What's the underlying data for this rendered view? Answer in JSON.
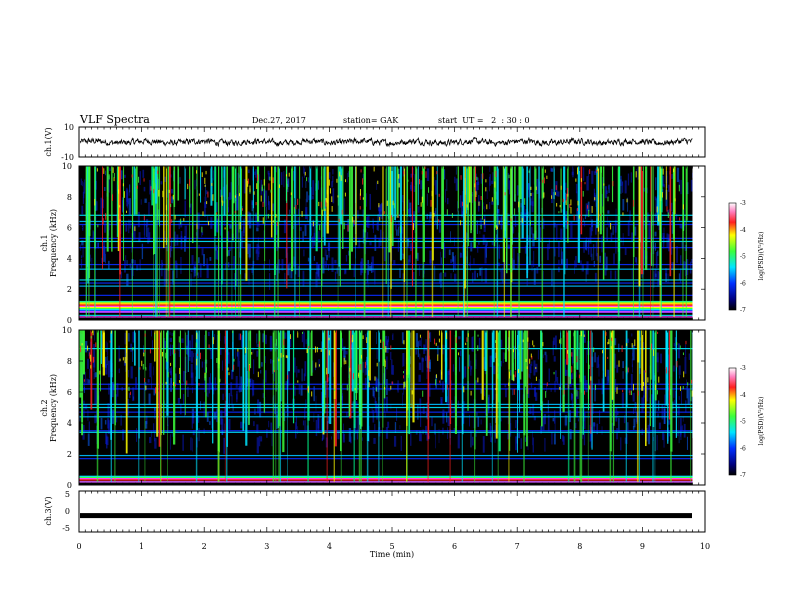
{
  "header": {
    "title": "VLF Spectra",
    "date": "Dec.27, 2017",
    "station": "station= GAK",
    "start_ut": "start  UT =   2  : 30 : 0"
  },
  "colors": {
    "background": "#000000",
    "blue": "#0a2cff",
    "cyan": "#00e5ff",
    "green": "#3cff3c",
    "yellow": "#ffff00",
    "red": "#ff2020",
    "magenta": "#ff40ff"
  },
  "chart_data": [
    {
      "type": "line",
      "id": "ch1-waveform",
      "ylabel": "ch.1(V)",
      "ylim": [
        -10,
        10
      ],
      "yticks": [
        "10",
        "-10"
      ],
      "xlim": [
        0,
        10
      ],
      "description_level": "noisy trace around 0 V, amplitude approx ±2 V",
      "x_extent_min": [
        0.02,
        9.8
      ]
    },
    {
      "type": "heatmap",
      "id": "ch1-spectrogram",
      "ylabel": "ch.1\nFrequency (kHz)",
      "ylim": [
        0,
        10
      ],
      "yticks": [
        "0",
        "2",
        "4",
        "6",
        "8",
        "10"
      ],
      "xlim": [
        0,
        10
      ],
      "colorbar": {
        "label": "log(PSD)(V²/Hz)",
        "range": [
          -7,
          -3
        ],
        "ticks": [
          "-3",
          "-4",
          "-5",
          "-6",
          "-7"
        ]
      },
      "horizontal_lines_khz": [
        0.3,
        0.5,
        0.8,
        1.0,
        1.2,
        1.6,
        2.2,
        2.4,
        2.6,
        3.3,
        3.6,
        4.7,
        5.1,
        5.3,
        6.2,
        6.4,
        6.8
      ],
      "strong_band_khz": [
        0.5,
        1.2
      ]
    },
    {
      "type": "heatmap",
      "id": "ch2-spectrogram",
      "ylabel": "ch.2\nFrequency (kHz)",
      "ylim": [
        0,
        10
      ],
      "yticks": [
        "0",
        "2",
        "4",
        "6",
        "8",
        "10"
      ],
      "xlim": [
        0,
        10
      ],
      "colorbar": {
        "label": "log(PSD)(V²/Hz)",
        "range": [
          -7,
          -3
        ],
        "ticks": [
          "-3",
          "-4",
          "-5",
          "-6",
          "-7"
        ]
      },
      "horizontal_lines_khz": [
        0.2,
        0.5,
        1.7,
        1.9,
        3.4,
        3.5,
        4.4,
        4.7,
        5.0,
        5.2,
        6.2,
        6.5,
        8.8
      ],
      "strong_band_khz": [
        0.3,
        0.6
      ]
    },
    {
      "type": "line",
      "id": "ch3-waveform",
      "ylabel": "ch.3(V)",
      "ylim": [
        -5,
        5
      ],
      "yticks": [
        "5",
        "0",
        "-5"
      ],
      "xlim": [
        0,
        10
      ],
      "level": -1.0
    }
  ],
  "xaxis": {
    "label": "Time (min)",
    "ticks": [
      "0",
      "1",
      "2",
      "3",
      "4",
      "5",
      "6",
      "7",
      "8",
      "9",
      "10"
    ]
  }
}
